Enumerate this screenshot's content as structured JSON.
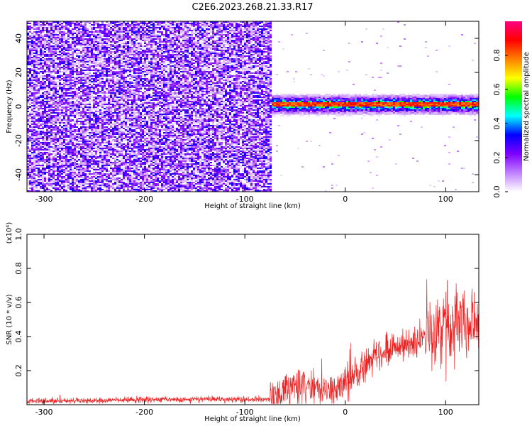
{
  "chart_data": [
    {
      "type": "heatmap",
      "title": "C2E6.2023.268.21.33.R17",
      "xlabel": "Height of straight line (km)",
      "ylabel": "Frequency (Hz)",
      "xlim": [
        -317,
        133
      ],
      "ylim": [
        -50,
        50
      ],
      "x_ticks": [
        -300,
        -200,
        -100,
        0,
        100
      ],
      "y_ticks": [
        -40,
        -20,
        0,
        20,
        40
      ],
      "colorbar": {
        "label": "Normalized spectral amplitude",
        "range": [
          0,
          1
        ],
        "ticks": [
          0.0,
          0.2,
          0.4,
          0.6,
          0.8
        ],
        "tick_labels": [
          "0.0",
          "0.2",
          "0.4",
          "0.6",
          "0.8"
        ],
        "colors": [
          "#ffffff",
          "#c080ff",
          "#7f00ff",
          "#0000ff",
          "#00ffff",
          "#00ff00",
          "#ffff00",
          "#ff8000",
          "#ff0000",
          "#ff0080"
        ]
      },
      "regions": [
        {
          "x": [
            -317,
            -75
          ],
          "freq": [
            -50,
            50
          ],
          "amplitude": 0.15,
          "description": "broadband noise"
        },
        {
          "x": [
            -75,
            133
          ],
          "freq": [
            -8,
            8
          ],
          "amplitude": 0.5,
          "center_freq": 1.5
        }
      ],
      "peak_line": {
        "x": [
          -75,
          133
        ],
        "freq": 1.5,
        "amplitude": 0.9
      }
    },
    {
      "type": "line",
      "xlabel": "Height of straight line (km)",
      "ylabel": "SNR (10 * v/v)",
      "y_multiplier": "(x10⁴)",
      "xlim": [
        -317,
        133
      ],
      "ylim": [
        0,
        1.0
      ],
      "x_ticks": [
        -300,
        -200,
        -100,
        0,
        100
      ],
      "y_ticks": [
        0.2,
        0.4,
        0.6,
        0.8,
        1.0
      ],
      "y_tick_labels": [
        "0.2",
        "0.4",
        "0.6",
        "0.8",
        "1.0"
      ],
      "color": "#ee2222",
      "envelope": [
        {
          "x": -317,
          "y": 0.02
        },
        {
          "x": -250,
          "y": 0.025
        },
        {
          "x": -200,
          "y": 0.03
        },
        {
          "x": -150,
          "y": 0.03
        },
        {
          "x": -100,
          "y": 0.03
        },
        {
          "x": -70,
          "y": 0.035
        },
        {
          "x": -55,
          "y": 0.09
        },
        {
          "x": -45,
          "y": 0.11
        },
        {
          "x": -30,
          "y": 0.09
        },
        {
          "x": -15,
          "y": 0.07
        },
        {
          "x": 0,
          "y": 0.14
        },
        {
          "x": 15,
          "y": 0.19
        },
        {
          "x": 30,
          "y": 0.28
        },
        {
          "x": 45,
          "y": 0.33
        },
        {
          "x": 60,
          "y": 0.34
        },
        {
          "x": 75,
          "y": 0.38
        },
        {
          "x": 90,
          "y": 0.44
        },
        {
          "x": 105,
          "y": 0.48
        },
        {
          "x": 120,
          "y": 0.47
        },
        {
          "x": 133,
          "y": 0.46
        }
      ]
    }
  ]
}
